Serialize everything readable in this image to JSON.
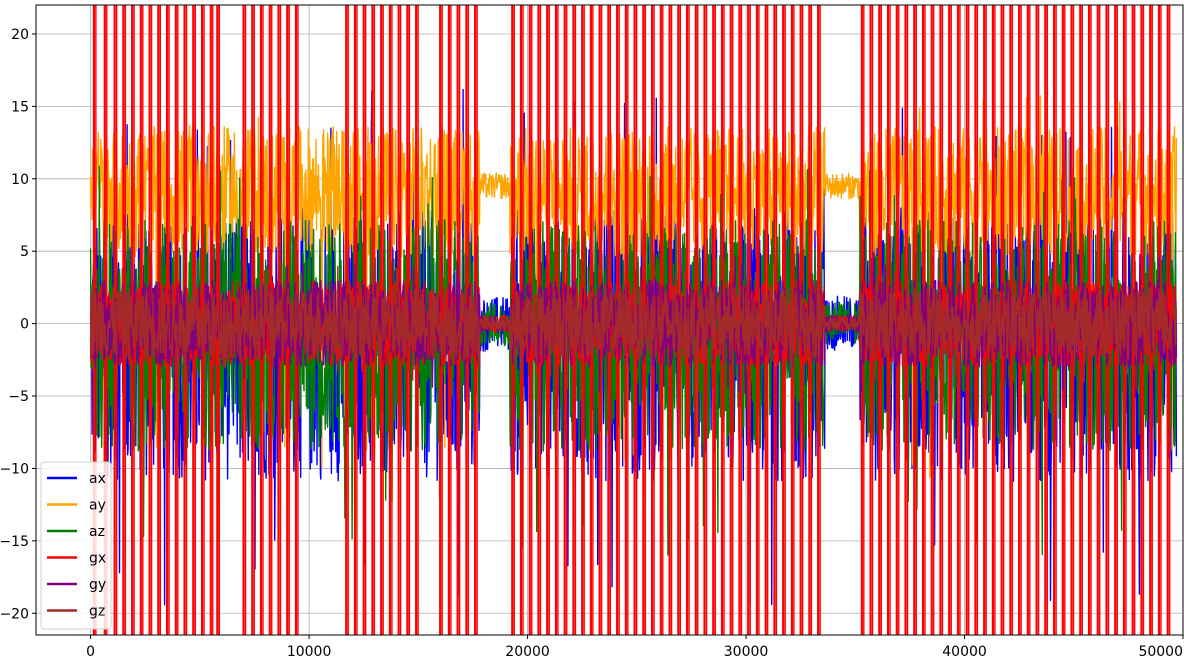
{
  "chart_data": {
    "type": "line",
    "title": "",
    "xlabel": "",
    "ylabel": "",
    "xlim": [
      -2500,
      50000
    ],
    "ylim": [
      -21.5,
      22
    ],
    "x_ticks": [
      0,
      10000,
      20000,
      30000,
      40000,
      50000
    ],
    "x_tick_labels": [
      "0",
      "10000",
      "20000",
      "30000",
      "40000",
      "50000"
    ],
    "y_ticks": [
      20,
      15,
      10,
      5,
      0,
      -5,
      -10,
      -15,
      -20
    ],
    "y_tick_labels": [
      "20",
      "15",
      "10",
      "5",
      "0",
      "−5",
      "−10",
      "−15",
      "−20"
    ],
    "grid": true,
    "legend_position": "lower-left",
    "n_samples": 49700,
    "active_segments": [
      [
        0,
        9200
      ],
      [
        9200,
        17800
      ],
      [
        19200,
        33600
      ],
      [
        35200,
        49700
      ]
    ],
    "series": [
      {
        "name": "ax",
        "color": "#0000ff",
        "mean": 0,
        "typical_range": [
          -13,
          6
        ],
        "extreme_range": [
          -19.5,
          16.2
        ]
      },
      {
        "name": "ay",
        "color": "#ffa500",
        "mean": 9.5,
        "typical_range": [
          4,
          13
        ],
        "extreme_range": [
          -11,
          16
        ]
      },
      {
        "name": "az",
        "color": "#008000",
        "mean": 0,
        "typical_range": [
          -10,
          6
        ],
        "extreme_range": [
          -16,
          11
        ]
      },
      {
        "name": "gx",
        "color": "#ff0000",
        "mean": 0,
        "typical_range": [
          -21.5,
          22
        ],
        "extreme_range": [
          -21.5,
          22
        ]
      },
      {
        "name": "gy",
        "color": "#800080",
        "mean": 0,
        "typical_range": [
          -3,
          3
        ],
        "extreme_range": [
          -5,
          5
        ]
      },
      {
        "name": "gz",
        "color": "#a52a2a",
        "mean": 0,
        "typical_range": [
          -2.5,
          2.5
        ],
        "extreme_range": [
          -4,
          4
        ]
      }
    ],
    "gx_saturated_spike_x": [
      150,
      650,
      1100,
      1500,
      1900,
      2300,
      2700,
      3100,
      3500,
      3900,
      4300,
      4700,
      5100,
      5500,
      5800,
      7000,
      7400,
      7800,
      8200,
      8600,
      9000,
      9400,
      11700,
      12100,
      12500,
      12900,
      13300,
      13700,
      14100,
      14500,
      14900,
      16000,
      16400,
      16800,
      17200,
      17600,
      19300,
      19700,
      20100,
      20500,
      20900,
      21300,
      21700,
      22100,
      22500,
      22900,
      23300,
      23700,
      24100,
      24500,
      24900,
      25300,
      25700,
      26100,
      26500,
      26900,
      27300,
      27700,
      28100,
      28500,
      28900,
      29300,
      29700,
      30100,
      30500,
      30900,
      31300,
      31700,
      32100,
      32500,
      32900,
      33300,
      35300,
      35700,
      36100,
      36500,
      36900,
      37300,
      37700,
      38100,
      38500,
      38900,
      39300,
      39700,
      40100,
      40500,
      40900,
      41300,
      41700,
      42100,
      42500,
      42900,
      43300,
      43700,
      44100,
      44500,
      44900,
      45300,
      45700,
      46100,
      46500,
      46900,
      47300,
      47700,
      48100,
      48500,
      48900,
      49300
    ]
  }
}
